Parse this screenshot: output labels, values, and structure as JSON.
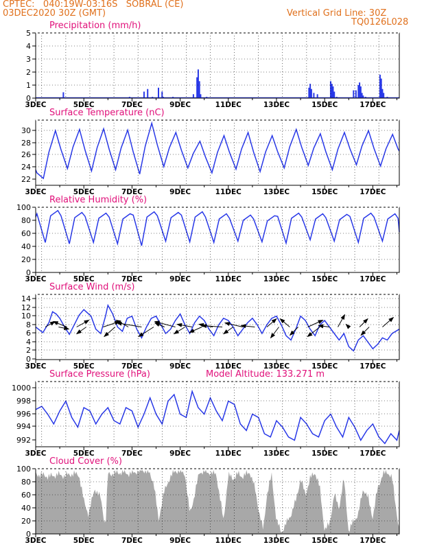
{
  "header": {
    "line1": "CPTEC:   040:19W-03:16S   SOBRAL (CE)",
    "line2": "03DEC2020 30Z (GMT)",
    "grid_note": "Vertical Grid Line: 30Z",
    "run_code": "TQ0126L028"
  },
  "model_altitude": "Model Altitude: 133.271 m",
  "colors": {
    "header": "#e0701c",
    "panel_title": "#e0107a",
    "series": "#2838e8",
    "cloud": "#a8a8a8",
    "wind_arrow": "#000000"
  },
  "x_ticks": [
    "3DEC",
    "5DEC",
    "7DEC",
    "9DEC",
    "11DEC",
    "13DEC",
    "15DEC",
    "17DEC"
  ],
  "x_range_days": [
    3,
    18.1
  ],
  "chart_data": [
    {
      "id": "precip",
      "type": "bar",
      "title": "Precipitation (mm/h)",
      "yticks": [
        "0",
        "1",
        "2",
        "3",
        "4",
        "5"
      ],
      "ylim": [
        0,
        5
      ],
      "grid": true,
      "x_day": [
        3.3,
        3.5,
        3.8,
        4.15,
        4.55,
        5.4,
        6.2,
        6.9,
        7.35,
        7.5,
        7.65,
        7.85,
        8.1,
        8.25,
        8.3,
        8.7,
        9.0,
        9.55,
        9.7,
        9.75,
        9.8,
        9.85,
        10.1,
        10.6,
        11.1,
        12.1,
        13.1,
        13.7,
        14.35,
        14.4,
        14.45,
        14.55,
        14.7,
        15.25,
        15.3,
        15.35,
        15.4,
        15.5,
        16.2,
        16.3,
        16.4,
        16.45,
        16.5,
        16.55,
        16.6,
        16.7,
        17.3,
        17.35,
        17.4,
        17.45,
        17.6,
        17.8
      ],
      "values": [
        0.05,
        0.05,
        0.05,
        0.45,
        0.05,
        0.05,
        0.05,
        0.1,
        0.05,
        0.5,
        0.7,
        0.1,
        0.8,
        0.5,
        0.1,
        0.1,
        0.05,
        0.3,
        1.6,
        2.2,
        1.3,
        0.3,
        0.1,
        0.05,
        0.05,
        0.05,
        0.05,
        0.05,
        0.8,
        1.1,
        0.7,
        0.4,
        0.3,
        1.3,
        1.1,
        0.9,
        0.5,
        0.1,
        0.6,
        0.6,
        1.0,
        1.2,
        0.9,
        0.4,
        0.2,
        0.1,
        1.8,
        1.5,
        0.7,
        0.4,
        0.1,
        0.05
      ]
    },
    {
      "id": "temp",
      "type": "line",
      "title": "Surface Temperature (nC)",
      "yticks": [
        "22",
        "24",
        "26",
        "28",
        "30"
      ],
      "ylim": [
        21,
        31.5
      ],
      "grid": true,
      "daily_min": [
        22.1,
        23.7,
        23.3,
        23.5,
        22.8,
        24.0,
        23.8,
        23.0,
        23.6,
        23.2,
        23.8,
        24.2,
        23.5,
        24.3,
        24.1,
        24.5
      ],
      "daily_max": [
        29.8,
        30.0,
        30.1,
        29.9,
        31.0,
        29.5,
        28.1,
        29.0,
        29.5,
        29.0,
        30.0,
        29.3,
        29.5,
        29.8,
        29.2,
        28.2
      ]
    },
    {
      "id": "rh",
      "type": "line",
      "title": "Relative Humidity (%)",
      "yticks": [
        "0",
        "20",
        "40",
        "60",
        "80",
        "100"
      ],
      "ylim": [
        0,
        100
      ],
      "grid": true,
      "daily_max": [
        95,
        92,
        91,
        90,
        93,
        92,
        93,
        90,
        88,
        87,
        91,
        90,
        89,
        91,
        90,
        88
      ],
      "daily_min": [
        46,
        44,
        46,
        44,
        41,
        48,
        47,
        46,
        48,
        47,
        45,
        50,
        48,
        46,
        48,
        50
      ]
    },
    {
      "id": "wind",
      "type": "line",
      "title": "Surface Wind (m/s)",
      "yticks": [
        "0",
        "2",
        "4",
        "6",
        "8",
        "10",
        "12",
        "14"
      ],
      "ylim": [
        0,
        15
      ],
      "grid": true,
      "x_day": [
        3.0,
        3.3,
        3.55,
        3.7,
        3.85,
        4.0,
        4.2,
        4.4,
        4.6,
        4.8,
        5.0,
        5.3,
        5.5,
        5.7,
        5.9,
        6.0,
        6.2,
        6.4,
        6.6,
        6.8,
        7.0,
        7.2,
        7.4,
        7.6,
        7.8,
        8.0,
        8.2,
        8.4,
        8.6,
        8.8,
        9.0,
        9.2,
        9.4,
        9.6,
        9.8,
        10.0,
        10.2,
        10.4,
        10.6,
        10.8,
        11.0,
        11.2,
        11.4,
        11.6,
        11.8,
        12.0,
        12.2,
        12.4,
        12.6,
        12.8,
        13.0,
        13.2,
        13.4,
        13.6,
        13.8,
        14.0,
        14.2,
        14.4,
        14.6,
        14.8,
        15.0,
        15.2,
        15.4,
        15.6,
        15.8,
        16.0,
        16.2,
        16.4,
        16.6,
        16.8,
        17.0,
        17.2,
        17.4,
        17.6,
        17.8,
        18.1
      ],
      "values": [
        7.5,
        6.2,
        8.5,
        11.0,
        10.5,
        9.5,
        7.5,
        5.8,
        8.0,
        10.2,
        11.5,
        10.0,
        7.0,
        6.0,
        10.0,
        12.5,
        10.5,
        7.5,
        6.5,
        9.5,
        10.0,
        7.0,
        5.0,
        7.5,
        9.5,
        10.0,
        8.0,
        6.0,
        7.0,
        9.0,
        10.5,
        8.0,
        6.0,
        8.5,
        10.0,
        9.0,
        7.0,
        5.5,
        8.0,
        9.5,
        9.0,
        7.5,
        5.5,
        7.0,
        8.5,
        9.5,
        8.0,
        6.0,
        8.0,
        9.5,
        10.0,
        8.0,
        5.5,
        4.5,
        7.0,
        10.0,
        9.0,
        7.0,
        5.5,
        8.0,
        9.0,
        7.5,
        6.0,
        4.5,
        6.0,
        3.0,
        2.0,
        4.5,
        5.5,
        4.0,
        2.5,
        3.5,
        5.0,
        4.5,
        6.0,
        7.0
      ],
      "arrows": [
        {
          "day": 3.4,
          "dx": 14,
          "dy": -8
        },
        {
          "day": 3.95,
          "dx": 15,
          "dy": 3
        },
        {
          "day": 4.3,
          "dx": -20,
          "dy": -8
        },
        {
          "day": 4.7,
          "dx": 18,
          "dy": -10
        },
        {
          "day": 5.1,
          "dx": -14,
          "dy": 10
        },
        {
          "day": 5.8,
          "dx": 24,
          "dy": -8
        },
        {
          "day": 6.3,
          "dx": -16,
          "dy": 14
        },
        {
          "day": 6.85,
          "dx": -18,
          "dy": -10
        },
        {
          "day": 7.4,
          "dx": -36,
          "dy": -6
        },
        {
          "day": 7.9,
          "dx": -22,
          "dy": 14
        },
        {
          "day": 8.35,
          "dx": -14,
          "dy": -6
        },
        {
          "day": 8.8,
          "dx": -30,
          "dy": -8
        },
        {
          "day": 9.2,
          "dx": -16,
          "dy": 10
        },
        {
          "day": 9.5,
          "dx": -22,
          "dy": -4
        },
        {
          "day": 9.9,
          "dx": -18,
          "dy": 8
        },
        {
          "day": 10.35,
          "dx": -20,
          "dy": -4
        },
        {
          "day": 10.75,
          "dx": -30,
          "dy": -2
        },
        {
          "day": 11.2,
          "dx": -14,
          "dy": 10
        },
        {
          "day": 11.6,
          "dx": -26,
          "dy": -6
        },
        {
          "day": 12.1,
          "dx": -20,
          "dy": -2
        },
        {
          "day": 12.6,
          "dx": 14,
          "dy": -12
        },
        {
          "day": 13.1,
          "dx": -12,
          "dy": 16
        },
        {
          "day": 13.55,
          "dx": -14,
          "dy": -12
        },
        {
          "day": 13.9,
          "dx": -12,
          "dy": 12
        },
        {
          "day": 14.3,
          "dx": 22,
          "dy": -10
        },
        {
          "day": 14.8,
          "dx": -18,
          "dy": 14
        },
        {
          "day": 15.2,
          "dx": -16,
          "dy": -2
        },
        {
          "day": 15.55,
          "dx": 10,
          "dy": -18
        },
        {
          "day": 16.0,
          "dx": -4,
          "dy": -4
        },
        {
          "day": 16.45,
          "dx": 12,
          "dy": -12
        },
        {
          "day": 16.85,
          "dx": -12,
          "dy": 12
        },
        {
          "day": 17.4,
          "dx": 16,
          "dy": -14
        }
      ]
    },
    {
      "id": "pressure",
      "type": "line",
      "title": "Surface Pressure (hPa)",
      "yticks": [
        "992",
        "994",
        "996",
        "998",
        "1000"
      ],
      "ylim": [
        991,
        1001
      ],
      "grid": true,
      "x_day": [
        3.0,
        3.25,
        3.5,
        3.75,
        4.0,
        4.25,
        4.5,
        4.75,
        5.0,
        5.25,
        5.5,
        5.75,
        6.0,
        6.25,
        6.5,
        6.75,
        7.0,
        7.25,
        7.5,
        7.75,
        8.0,
        8.25,
        8.5,
        8.75,
        9.0,
        9.25,
        9.5,
        9.75,
        10.0,
        10.25,
        10.5,
        10.75,
        11.0,
        11.25,
        11.5,
        11.75,
        12.0,
        12.25,
        12.5,
        12.75,
        13.0,
        13.25,
        13.5,
        13.75,
        14.0,
        14.25,
        14.5,
        14.75,
        15.0,
        15.25,
        15.5,
        15.75,
        16.0,
        16.25,
        16.5,
        16.75,
        17.0,
        17.25,
        17.5,
        17.75,
        18.0,
        18.1
      ],
      "values": [
        996.7,
        997.2,
        996.0,
        994.5,
        996.5,
        998.0,
        995.5,
        994.0,
        997.0,
        996.5,
        994.5,
        996.0,
        997.0,
        995.0,
        994.5,
        997.0,
        996.5,
        994.0,
        996.0,
        998.5,
        996.0,
        994.5,
        998.0,
        999.0,
        996.0,
        995.5,
        999.5,
        997.0,
        996.0,
        998.5,
        996.5,
        995.0,
        998.0,
        997.5,
        994.5,
        993.5,
        996.0,
        995.5,
        993.0,
        992.5,
        995.0,
        994.0,
        992.5,
        992.0,
        995.5,
        994.5,
        993.0,
        992.5,
        995.0,
        996.0,
        994.0,
        992.5,
        995.5,
        994.0,
        992.0,
        993.5,
        994.5,
        992.5,
        991.5,
        993.0,
        992.0,
        993.5
      ]
    },
    {
      "id": "cloud",
      "type": "area",
      "title": "Cloud Cover (%)",
      "yticks": [
        "0",
        "20",
        "40",
        "60",
        "80",
        "100"
      ],
      "ylim": [
        0,
        100
      ],
      "grid": true,
      "x_day": [
        3.0,
        3.3,
        3.6,
        3.9,
        4.2,
        4.5,
        4.8,
        5.0,
        5.2,
        5.45,
        5.7,
        5.9,
        6.0,
        6.3,
        6.6,
        6.9,
        7.2,
        7.5,
        7.7,
        7.9,
        8.1,
        8.3,
        8.55,
        8.8,
        9.0,
        9.2,
        9.4,
        9.6,
        9.8,
        10.0,
        10.2,
        10.5,
        10.8,
        11.0,
        11.2,
        11.4,
        11.6,
        11.9,
        12.1,
        12.3,
        12.45,
        12.6,
        12.8,
        13.0,
        13.2,
        13.4,
        13.6,
        13.8,
        14.0,
        14.2,
        14.4,
        14.6,
        14.8,
        15.0,
        15.2,
        15.4,
        15.6,
        15.8,
        16.0,
        16.2,
        16.4,
        16.6,
        16.8,
        17.0,
        17.2,
        17.4,
        17.6,
        17.8,
        18.1
      ],
      "values": [
        92,
        90,
        88,
        91,
        89,
        92,
        91,
        50,
        30,
        70,
        55,
        10,
        92,
        93,
        95,
        92,
        96,
        98,
        94,
        80,
        20,
        60,
        85,
        97,
        96,
        92,
        30,
        60,
        95,
        96,
        94,
        92,
        20,
        90,
        85,
        92,
        88,
        95,
        70,
        30,
        5,
        60,
        90,
        20,
        3,
        15,
        30,
        50,
        85,
        60,
        85,
        95,
        70,
        5,
        15,
        60,
        40,
        85,
        3,
        20,
        30,
        70,
        55,
        25,
        70,
        90,
        96,
        85,
        4
      ]
    }
  ]
}
